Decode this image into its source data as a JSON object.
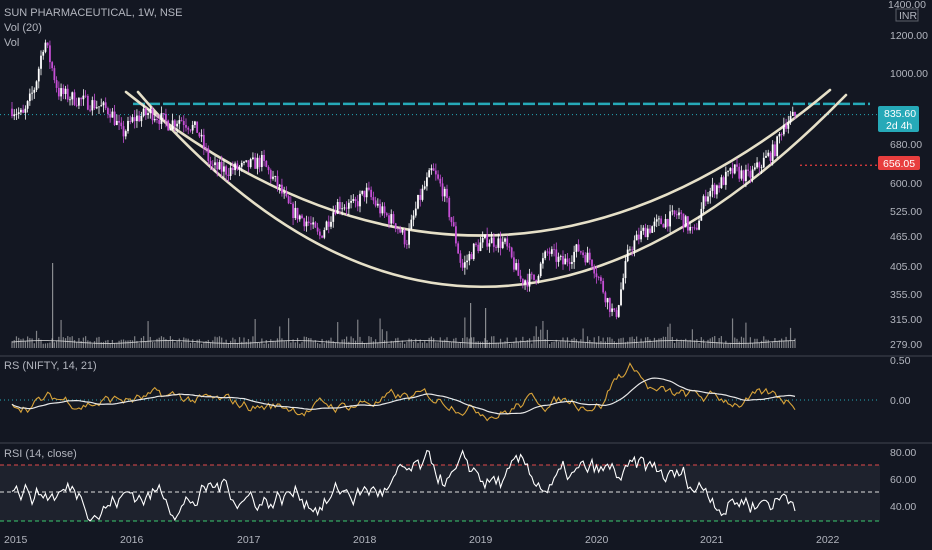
{
  "colors": {
    "background": "#131722",
    "candle_up": "#ffffff",
    "candle_down": "#c64fd6",
    "rs_line": "#d7a239",
    "rs_ma": "#e8e8e8",
    "rsi_line": "#ffffff",
    "resistance": "#26a9b8",
    "arc": "#e6e0c8",
    "price_tag": "#26a9b8",
    "level_tag": "#e83e3e",
    "volume": "#d8d8d8"
  },
  "header": {
    "symbol_line": "SUN PHARMACEUTICAL, 1W, NSE",
    "volume_line": "Vol (20)",
    "vol_label": "Vol"
  },
  "price_axis": {
    "currency": "INR",
    "top_label": "1400.00",
    "ticks": [
      "1200.00",
      "1000.00",
      "680.00",
      "600.00",
      "525.00",
      "465.00",
      "405.00",
      "355.00",
      "315.00",
      "279.00"
    ]
  },
  "price_tag": {
    "value": "835.60",
    "countdown": "2d 4h"
  },
  "level_tag": {
    "value": "656.05"
  },
  "rs_panel": {
    "title": "RS (NIFTY, 14, 21)",
    "ticks": [
      "0.50",
      "0.00"
    ]
  },
  "rsi_panel": {
    "title": "RSI (14, close)",
    "ticks": [
      "80.00",
      "60.00",
      "40.00"
    ]
  },
  "time_axis": {
    "labels": [
      "2015",
      "2016",
      "2017",
      "2018",
      "2019",
      "2020",
      "2021",
      "2022"
    ]
  },
  "chart_data": {
    "type": "candlestick",
    "title": "SUN PHARMACEUTICAL, 1W, NSE",
    "scale": "log",
    "ylim": [
      279,
      1400
    ],
    "x_range": [
      "2015",
      "2022"
    ],
    "close_anchors": [
      {
        "x": 2015.0,
        "y": 860
      },
      {
        "x": 2015.1,
        "y": 830
      },
      {
        "x": 2015.2,
        "y": 960
      },
      {
        "x": 2015.28,
        "y": 1200
      },
      {
        "x": 2015.4,
        "y": 930
      },
      {
        "x": 2015.55,
        "y": 900
      },
      {
        "x": 2015.7,
        "y": 880
      },
      {
        "x": 2015.85,
        "y": 850
      },
      {
        "x": 2015.95,
        "y": 760
      },
      {
        "x": 2016.05,
        "y": 820
      },
      {
        "x": 2016.2,
        "y": 845
      },
      {
        "x": 2016.35,
        "y": 800
      },
      {
        "x": 2016.45,
        "y": 820
      },
      {
        "x": 2016.6,
        "y": 775
      },
      {
        "x": 2016.72,
        "y": 650
      },
      {
        "x": 2016.85,
        "y": 640
      },
      {
        "x": 2017.0,
        "y": 650
      },
      {
        "x": 2017.15,
        "y": 670
      },
      {
        "x": 2017.3,
        "y": 590
      },
      {
        "x": 2017.4,
        "y": 530
      },
      {
        "x": 2017.55,
        "y": 500
      },
      {
        "x": 2017.65,
        "y": 465
      },
      {
        "x": 2017.8,
        "y": 545
      },
      {
        "x": 2017.95,
        "y": 540
      },
      {
        "x": 2018.05,
        "y": 580
      },
      {
        "x": 2018.2,
        "y": 520
      },
      {
        "x": 2018.3,
        "y": 500
      },
      {
        "x": 2018.4,
        "y": 455
      },
      {
        "x": 2018.5,
        "y": 550
      },
      {
        "x": 2018.62,
        "y": 640
      },
      {
        "x": 2018.72,
        "y": 580
      },
      {
        "x": 2018.8,
        "y": 490
      },
      {
        "x": 2018.88,
        "y": 400
      },
      {
        "x": 2018.98,
        "y": 440
      },
      {
        "x": 2019.1,
        "y": 460
      },
      {
        "x": 2019.25,
        "y": 450
      },
      {
        "x": 2019.38,
        "y": 380
      },
      {
        "x": 2019.5,
        "y": 380
      },
      {
        "x": 2019.62,
        "y": 435
      },
      {
        "x": 2019.75,
        "y": 410
      },
      {
        "x": 2019.88,
        "y": 440
      },
      {
        "x": 2020.0,
        "y": 415
      },
      {
        "x": 2020.1,
        "y": 360
      },
      {
        "x": 2020.2,
        "y": 315
      },
      {
        "x": 2020.32,
        "y": 440
      },
      {
        "x": 2020.45,
        "y": 480
      },
      {
        "x": 2020.6,
        "y": 500
      },
      {
        "x": 2020.75,
        "y": 520
      },
      {
        "x": 2020.88,
        "y": 470
      },
      {
        "x": 2020.98,
        "y": 570
      },
      {
        "x": 2021.1,
        "y": 600
      },
      {
        "x": 2021.22,
        "y": 640
      },
      {
        "x": 2021.35,
        "y": 620
      },
      {
        "x": 2021.48,
        "y": 670
      },
      {
        "x": 2021.58,
        "y": 710
      },
      {
        "x": 2021.65,
        "y": 800
      },
      {
        "x": 2021.75,
        "y": 830
      }
    ],
    "resistance_level": 880,
    "last_close": 835.6,
    "marked_level": 656.05,
    "rs_range": [
      -0.25,
      0.5
    ],
    "rsi_range": [
      24,
      92
    ],
    "rsi_levels": [
      70,
      50,
      30
    ]
  }
}
